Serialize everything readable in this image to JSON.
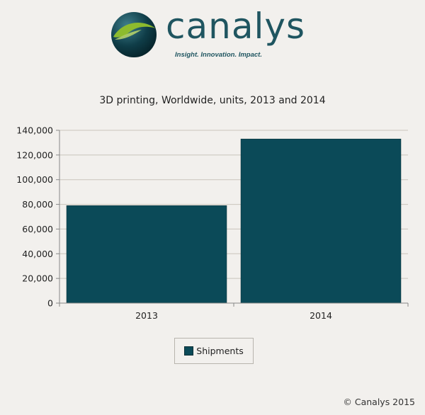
{
  "brand": {
    "name": "canalys",
    "tagline": "Insight. Innovation. Impact."
  },
  "colors": {
    "bar": "#0b4a58",
    "background": "#f2f0ed",
    "gridline": "#c9c4bb",
    "brand_teal": "#1f5560",
    "globe_green": "#8dbb2e"
  },
  "chart_data": {
    "type": "bar",
    "title": "3D printing, Worldwide, units, 2013 and 2014",
    "categories": [
      "2013",
      "2014"
    ],
    "series": [
      {
        "name": "Shipments",
        "values": [
          79000,
          133000
        ]
      }
    ],
    "ylim": [
      0,
      140000
    ],
    "yticks": [
      "0",
      "20,000",
      "40,000",
      "60,000",
      "80,000",
      "100,000",
      "120,000",
      "140,000"
    ],
    "grid": true,
    "legend_position": "bottom"
  },
  "footer": {
    "copyright": "© Canalys 2015"
  }
}
